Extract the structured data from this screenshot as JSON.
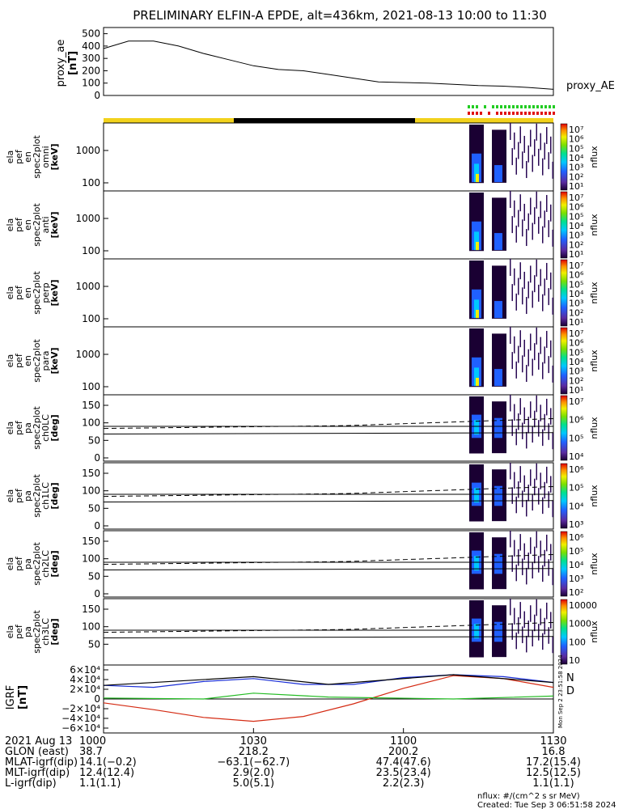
{
  "title": "PRELIMINARY ELFIN-A EPDE, alt=436km, 2021-08-13 10:00 to 11:30",
  "ae_panel": {
    "ylabel": [
      "proxy_ae",
      "[nT]"
    ],
    "yticks": [
      "500",
      "400",
      "300",
      "200",
      "100",
      "0"
    ],
    "legend": "proxy_AE"
  },
  "spec_panels": [
    {
      "ylabel": [
        "ela",
        "pef",
        "en",
        "spec2plot",
        "omni",
        "[keV]"
      ],
      "yticks": [
        "1000",
        "100"
      ],
      "cbar_ticks": [
        "10⁷",
        "10⁶",
        "10⁵",
        "10⁴",
        "10³",
        "10²",
        "10¹"
      ],
      "cbar_label": "nflux"
    },
    {
      "ylabel": [
        "ela",
        "pef",
        "en",
        "spec2plot",
        "anti",
        "[keV]"
      ],
      "yticks": [
        "1000",
        "100"
      ],
      "cbar_ticks": [
        "10⁷",
        "10⁶",
        "10⁵",
        "10⁴",
        "10³",
        "10²",
        "10¹"
      ],
      "cbar_label": "nflux"
    },
    {
      "ylabel": [
        "ela",
        "pef",
        "en",
        "spec2plot",
        "perp",
        "[keV]"
      ],
      "yticks": [
        "1000",
        "100"
      ],
      "cbar_ticks": [
        "10⁷",
        "10⁶",
        "10⁵",
        "10⁴",
        "10³",
        "10²",
        "10¹"
      ],
      "cbar_label": "nflux"
    },
    {
      "ylabel": [
        "ela",
        "pef",
        "en",
        "spec2plot",
        "para",
        "[keV]"
      ],
      "yticks": [
        "1000",
        "100"
      ],
      "cbar_ticks": [
        "10⁷",
        "10⁶",
        "10⁵",
        "10⁴",
        "10³",
        "10²",
        "10¹"
      ],
      "cbar_label": "nflux"
    }
  ],
  "pa_panels": [
    {
      "ylabel": [
        "ela",
        "pef",
        "pa",
        "spec2plot",
        "ch0LC",
        "[deg]"
      ],
      "yticks": [
        "150",
        "100",
        "50",
        "0"
      ],
      "cbar_ticks": [
        "10⁷",
        "10⁶",
        "10⁵",
        "10⁴"
      ],
      "cbar_label": "nflux"
    },
    {
      "ylabel": [
        "ela",
        "pef",
        "pa",
        "spec2plot",
        "ch1LC",
        "[deg]"
      ],
      "yticks": [
        "150",
        "100",
        "50",
        "0"
      ],
      "cbar_ticks": [
        "10⁶",
        "10⁵",
        "10⁴",
        "10³"
      ],
      "cbar_label": "nflux"
    },
    {
      "ylabel": [
        "ela",
        "pef",
        "pa",
        "spec2plot",
        "ch2LC",
        "[deg]"
      ],
      "yticks": [
        "150",
        "100",
        "50",
        "0"
      ],
      "cbar_ticks": [
        "10⁶",
        "10⁵",
        "10⁴",
        "10³",
        "10²"
      ],
      "cbar_label": "nflux"
    },
    {
      "ylabel": [
        "ela",
        "pef",
        "pa",
        "spec2plot",
        "ch3LC",
        "[deg]"
      ],
      "yticks": [
        "150",
        "100",
        "50"
      ],
      "cbar_ticks": [
        "10000",
        "1000",
        "100",
        "10"
      ],
      "cbar_label": "nflux"
    }
  ],
  "igrf_panel": {
    "ylabel": [
      "IGRF",
      "[nT]"
    ],
    "yticks": [
      "6×10⁴",
      "4×10⁴",
      "2×10⁴",
      "0",
      "−2×10⁴",
      "−4×10⁴",
      "−6×10⁴"
    ],
    "legend_n": "N",
    "legend_d": "D",
    "side_note": "Mon Sep 2 23:51:58 2024"
  },
  "xaxis": {
    "ticks": [
      "1000",
      "1030",
      "1100",
      "1130"
    ],
    "rows": [
      {
        "label": "2021 Aug 13",
        "values": [
          "1000",
          "1030",
          "1100",
          "1130"
        ]
      },
      {
        "label": "GLON (east)",
        "values": [
          "38.7",
          "218.2",
          "200.2",
          "16.8"
        ]
      },
      {
        "label": "MLAT-igrf(dip)",
        "values": [
          "14.1(−0.2)",
          "−63.1(−62.7)",
          "47.4(47.6)",
          "17.2(15.4)"
        ]
      },
      {
        "label": "MLT-igrf(dip)",
        "values": [
          "12.4(12.4)",
          "2.9(2.0)",
          "23.5(23.4)",
          "12.5(12.5)"
        ]
      },
      {
        "label": "L-igrf(dip)",
        "values": [
          "1.1(1.1)",
          "5.0(5.1)",
          "2.2(2.3)",
          "1.1(1.1)"
        ]
      }
    ]
  },
  "footer": {
    "units": "nflux: #/(cm^2 s sr MeV)",
    "created": "Created: Tue Sep  3 06:51:58 2024"
  },
  "colors": {
    "sunlit": "#f2d21c",
    "eclipse": "#000000",
    "igrf_black": "#000000",
    "igrf_blue": "#1a2ed6",
    "igrf_green": "#22bb22",
    "igrf_red": "#d42a12"
  },
  "chart_data": [
    {
      "type": "line",
      "title": "PRELIMINARY ELFIN-A EPDE, alt=436km, 2021-08-13 10:00 to 11:30",
      "xlabel": "",
      "ylabel": "proxy_ae [nT]",
      "x": [
        0,
        5,
        10,
        15,
        20,
        25,
        30,
        35,
        40,
        45,
        50,
        55,
        60,
        65,
        70,
        75,
        80,
        85,
        90
      ],
      "series": [
        {
          "name": "proxy_AE",
          "values": [
            380,
            440,
            440,
            400,
            340,
            290,
            240,
            210,
            200,
            170,
            140,
            110,
            105,
            100,
            90,
            80,
            75,
            65,
            50
          ]
        }
      ],
      "ylim": [
        0,
        550
      ]
    },
    {
      "type": "line",
      "xlabel": "",
      "ylabel": "IGRF [nT]",
      "x": [
        0,
        10,
        20,
        30,
        40,
        50,
        60,
        70,
        80,
        90
      ],
      "series": [
        {
          "name": "N",
          "values": [
            28000,
            24000,
            36000,
            42000,
            30000,
            30000,
            44000,
            50000,
            46000,
            34000
          ]
        },
        {
          "name": "D",
          "values": [
            -8000,
            -22000,
            -38000,
            -46000,
            -36000,
            -10000,
            22000,
            48000,
            42000,
            24000
          ]
        }
      ],
      "ylim": [
        -70000,
        70000
      ]
    }
  ]
}
